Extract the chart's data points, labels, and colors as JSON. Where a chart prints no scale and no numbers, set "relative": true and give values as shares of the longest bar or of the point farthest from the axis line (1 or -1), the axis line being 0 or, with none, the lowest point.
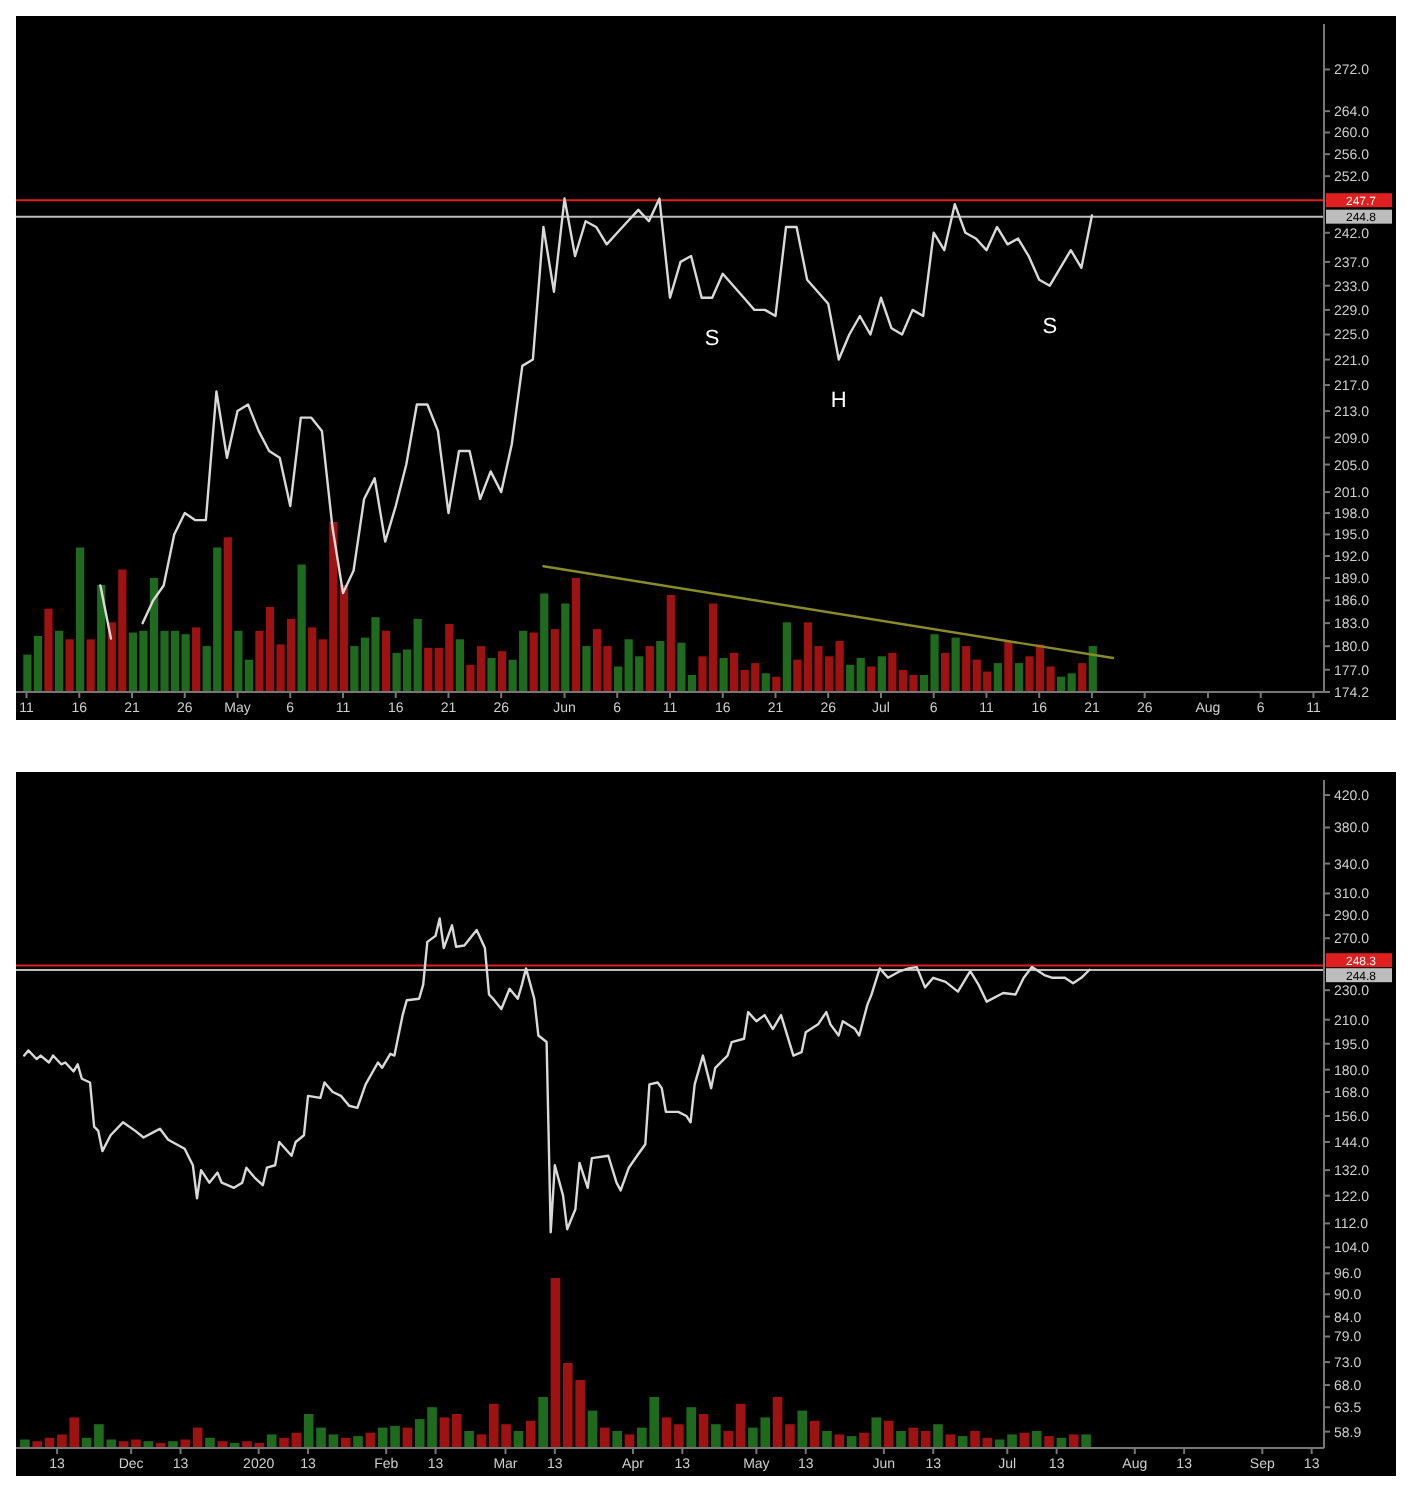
{
  "chart_data": [
    {
      "type": "line",
      "color": "#d9d9d9",
      "log": "y",
      "x": [
        "2020-04-18",
        "2020-04-19",
        "2020-04-20",
        "2020-04-21",
        "2020-04-22",
        "2020-04-23",
        "2020-04-24",
        "2020-04-25",
        "2020-04-26",
        "2020-04-27",
        "2020-04-28",
        "2020-04-29",
        "2020-04-30",
        "2020-05-01",
        "2020-05-02",
        "2020-05-03",
        "2020-05-04",
        "2020-05-05",
        "2020-05-06",
        "2020-05-07",
        "2020-05-08",
        "2020-05-09",
        "2020-05-10",
        "2020-05-11",
        "2020-05-12",
        "2020-05-13",
        "2020-05-14",
        "2020-05-15",
        "2020-05-16",
        "2020-05-17",
        "2020-05-18",
        "2020-05-19",
        "2020-05-20",
        "2020-05-21",
        "2020-05-22",
        "2020-05-23",
        "2020-05-24",
        "2020-05-25",
        "2020-05-26",
        "2020-05-27",
        "2020-05-28",
        "2020-05-29",
        "2020-05-30",
        "2020-05-31",
        "2020-06-01",
        "2020-06-02",
        "2020-06-03",
        "2020-06-04",
        "2020-06-05",
        "2020-06-06",
        "2020-06-07",
        "2020-06-08",
        "2020-06-09",
        "2020-06-10",
        "2020-06-11",
        "2020-06-12",
        "2020-06-13",
        "2020-06-14",
        "2020-06-15",
        "2020-06-16",
        "2020-06-17",
        "2020-06-18",
        "2020-06-19",
        "2020-06-20",
        "2020-06-21",
        "2020-06-22",
        "2020-06-23",
        "2020-06-24",
        "2020-06-25",
        "2020-06-26",
        "2020-06-27",
        "2020-06-28",
        "2020-06-29",
        "2020-06-30",
        "2020-07-01",
        "2020-07-02",
        "2020-07-03",
        "2020-07-04",
        "2020-07-05",
        "2020-07-06",
        "2020-07-07",
        "2020-07-08",
        "2020-07-09",
        "2020-07-10",
        "2020-07-11",
        "2020-07-12",
        "2020-07-13",
        "2020-07-14",
        "2020-07-15",
        "2020-07-16",
        "2020-07-17",
        "2020-07-18",
        "2020-07-19",
        "2020-07-20",
        "2020-07-21"
      ],
      "values": [
        188,
        181,
        null,
        null,
        183,
        186,
        188,
        195,
        198,
        197,
        197,
        216,
        206,
        213,
        214,
        210,
        207,
        206,
        199,
        212,
        212,
        210,
        196,
        187,
        190,
        200,
        203,
        194,
        199,
        205,
        214,
        214,
        210,
        198,
        207,
        207,
        200,
        204,
        201,
        208,
        220,
        221,
        243,
        232,
        248,
        238,
        244,
        243,
        240,
        242,
        244,
        246,
        244,
        248,
        231,
        237,
        238,
        231,
        231,
        235,
        233,
        231,
        229,
        229,
        228,
        243,
        243,
        234,
        232,
        230,
        221,
        225,
        228,
        225,
        231,
        226,
        225,
        229,
        228,
        242,
        239,
        247,
        242,
        241,
        239,
        243,
        240,
        241,
        238,
        234,
        233,
        236,
        239,
        236,
        245
      ],
      "xlim": [
        "2020-04-10",
        "2020-08-12"
      ],
      "xticks": [
        {
          "value": "2020-04-11",
          "label": "11"
        },
        {
          "value": "2020-04-16",
          "label": "16"
        },
        {
          "value": "2020-04-21",
          "label": "21"
        },
        {
          "value": "2020-04-26",
          "label": "26"
        },
        {
          "value": "2020-05-01",
          "label": "May"
        },
        {
          "value": "2020-05-06",
          "label": "6"
        },
        {
          "value": "2020-05-11",
          "label": "11"
        },
        {
          "value": "2020-05-16",
          "label": "16"
        },
        {
          "value": "2020-05-21",
          "label": "21"
        },
        {
          "value": "2020-05-26",
          "label": "26"
        },
        {
          "value": "2020-06-01",
          "label": "Jun"
        },
        {
          "value": "2020-06-06",
          "label": "6"
        },
        {
          "value": "2020-06-11",
          "label": "11"
        },
        {
          "value": "2020-06-16",
          "label": "16"
        },
        {
          "value": "2020-06-21",
          "label": "21"
        },
        {
          "value": "2020-06-26",
          "label": "26"
        },
        {
          "value": "2020-07-01",
          "label": "Jul"
        },
        {
          "value": "2020-07-06",
          "label": "6"
        },
        {
          "value": "2020-07-11",
          "label": "11"
        },
        {
          "value": "2020-07-16",
          "label": "16"
        },
        {
          "value": "2020-07-21",
          "label": "21"
        },
        {
          "value": "2020-07-26",
          "label": "26"
        },
        {
          "value": "2020-08-01",
          "label": "Aug"
        },
        {
          "value": "2020-08-06",
          "label": "6"
        },
        {
          "value": "2020-08-11",
          "label": "11"
        }
      ],
      "ylim": [
        174.2,
        281
      ],
      "yticks": [
        174.2,
        {
          "value": 177,
          "label": "177.0"
        },
        {
          "value": 180,
          "label": "180.0"
        },
        {
          "value": 183,
          "label": "183.0"
        },
        {
          "value": 186,
          "label": "186.0"
        },
        {
          "value": 189,
          "label": "189.0"
        },
        {
          "value": 192,
          "label": "192.0"
        },
        {
          "value": 195,
          "label": "195.0"
        },
        {
          "value": 198,
          "label": "198.0"
        },
        {
          "value": 201,
          "label": "201.0"
        },
        {
          "value": 205,
          "label": "205.0"
        },
        {
          "value": 209,
          "label": "209.0"
        },
        {
          "value": 213,
          "label": "213.0"
        },
        {
          "value": 217,
          "label": "217.0"
        },
        {
          "value": 221,
          "label": "221.0"
        },
        {
          "value": 225,
          "label": "225.0"
        },
        {
          "value": 229,
          "label": "229.0"
        },
        {
          "value": 233,
          "label": "233.0"
        },
        {
          "value": 237,
          "label": "237.0"
        },
        {
          "value": 242,
          "label": "242.0"
        },
        {
          "value": 252,
          "label": "252.0"
        },
        {
          "value": 256,
          "label": "256.0"
        },
        {
          "value": 260,
          "label": "260.0"
        },
        {
          "value": 264,
          "label": "264.0"
        },
        {
          "value": 272,
          "label": "272.0"
        }
      ],
      "ref_lines": [
        {
          "axis": "y",
          "value": 247.7,
          "label": "247.7",
          "color": "#e02020"
        },
        {
          "axis": "y",
          "value": 244.8,
          "label": "244.8",
          "color": "#bdbdbd"
        }
      ],
      "annotations": [
        {
          "text": "S",
          "x": "2020-06-15",
          "y": 231
        },
        {
          "text": "H",
          "x": "2020-06-27",
          "y": 221
        },
        {
          "text": "S",
          "x": "2020-07-17",
          "y": 233
        }
      ]
    },
    {
      "type": "bar",
      "relative": true,
      "tick_labels": false,
      "xlim": [
        "2020-04-10",
        "2020-08-12"
      ],
      "xticks": [
        {
          "value": "2020-04-11",
          "label": null
        },
        {
          "value": "2020-04-16",
          "label": null
        },
        {
          "value": "2020-04-21",
          "label": null
        },
        {
          "value": "2020-04-26",
          "label": null
        },
        {
          "value": "2020-05-01",
          "label": null
        },
        {
          "value": "2020-05-06",
          "label": null
        },
        {
          "value": "2020-05-11",
          "label": null
        },
        {
          "value": "2020-05-16",
          "label": null
        },
        {
          "value": "2020-05-21",
          "label": null
        },
        {
          "value": "2020-05-26",
          "label": null
        },
        {
          "value": "2020-06-01",
          "label": null
        },
        {
          "value": "2020-06-06",
          "label": null
        },
        {
          "value": "2020-06-11",
          "label": null
        },
        {
          "value": "2020-06-16",
          "label": null
        },
        {
          "value": "2020-06-21",
          "label": null
        },
        {
          "value": "2020-06-26",
          "label": null
        },
        {
          "value": "2020-07-01",
          "label": null
        },
        {
          "value": "2020-07-06",
          "label": null
        },
        {
          "value": "2020-07-11",
          "label": null
        },
        {
          "value": "2020-07-16",
          "label": null
        },
        {
          "value": "2020-07-21",
          "label": null
        },
        {
          "value": "2020-07-26",
          "label": null
        },
        {
          "value": "2020-08-01",
          "label": null
        },
        {
          "value": "2020-08-06",
          "label": null
        },
        {
          "value": "2020-08-11",
          "label": null
        }
      ],
      "series": [
        {
          "type": "bar",
          "x": [
            "2020-04-11",
            "2020-04-12",
            "2020-04-13",
            "2020-04-14",
            "2020-04-15",
            "2020-04-16",
            "2020-04-17",
            "2020-04-18",
            "2020-04-19",
            "2020-04-20",
            "2020-04-21",
            "2020-04-22",
            "2020-04-23",
            "2020-04-24",
            "2020-04-25",
            "2020-04-26",
            "2020-04-27",
            "2020-04-28",
            "2020-04-29",
            "2020-04-30",
            "2020-05-01",
            "2020-05-02",
            "2020-05-03",
            "2020-05-04",
            "2020-05-05",
            "2020-05-06",
            "2020-05-07",
            "2020-05-08",
            "2020-05-09",
            "2020-05-10",
            "2020-05-11",
            "2020-05-12",
            "2020-05-13",
            "2020-05-14",
            "2020-05-15",
            "2020-05-16",
            "2020-05-17",
            "2020-05-18",
            "2020-05-19",
            "2020-05-20",
            "2020-05-21",
            "2020-05-22",
            "2020-05-23",
            "2020-05-24",
            "2020-05-25",
            "2020-05-26",
            "2020-05-27",
            "2020-05-28",
            "2020-05-29",
            "2020-05-30",
            "2020-05-31",
            "2020-06-01",
            "2020-06-02",
            "2020-06-03",
            "2020-06-04",
            "2020-06-05",
            "2020-06-06",
            "2020-06-07",
            "2020-06-08",
            "2020-06-09",
            "2020-06-10",
            "2020-06-11",
            "2020-06-12",
            "2020-06-13",
            "2020-06-14",
            "2020-06-15",
            "2020-06-16",
            "2020-06-17",
            "2020-06-18",
            "2020-06-19",
            "2020-06-20",
            "2020-06-21",
            "2020-06-22",
            "2020-06-23",
            "2020-06-24",
            "2020-06-25",
            "2020-06-26",
            "2020-06-27",
            "2020-06-28",
            "2020-06-29",
            "2020-06-30",
            "2020-07-01",
            "2020-07-02",
            "2020-07-03",
            "2020-07-04",
            "2020-07-05",
            "2020-07-06",
            "2020-07-07",
            "2020-07-08",
            "2020-07-09",
            "2020-07-10",
            "2020-07-11",
            "2020-07-12",
            "2020-07-13",
            "2020-07-14",
            "2020-07-15",
            "2020-07-16",
            "2020-07-17",
            "2020-07-18",
            "2020-07-19",
            "2020-07-20",
            "2020-07-21"
          ],
          "values": [
            0.22,
            0.33,
            0.49,
            0.36,
            0.31,
            0.85,
            0.31,
            0.63,
            0.41,
            0.72,
            0.35,
            0.36,
            0.67,
            0.36,
            0.36,
            0.34,
            0.38,
            0.27,
            0.85,
            0.91,
            0.36,
            0.19,
            0.36,
            0.5,
            0.28,
            0.43,
            0.75,
            0.38,
            0.31,
            1,
            0.63,
            0.27,
            0.32,
            0.44,
            0.36,
            0.23,
            0.25,
            0.43,
            0.26,
            0.26,
            0.4,
            0.31,
            0.16,
            0.27,
            0.2,
            0.24,
            0.19,
            0.36,
            0.35,
            0.58,
            0.37,
            0.52,
            0.67,
            0.27,
            0.37,
            0.27,
            0.15,
            0.31,
            0.21,
            0.27,
            0.3,
            0.57,
            0.29,
            0.1,
            0.21,
            0.52,
            0.2,
            0.23,
            0.13,
            0.17,
            0.11,
            0.09,
            0.41,
            0.19,
            0.41,
            0.27,
            0.21,
            0.3,
            0.16,
            0.2,
            0.15,
            0.21,
            0.23,
            0.13,
            0.1,
            0.1,
            0.34,
            0.23,
            0.32,
            0.27,
            0.19,
            0.12,
            0.17,
            0.3,
            0.17,
            0.21,
            0.28,
            0.15,
            0.09,
            0.11,
            0.17,
            0.27
          ],
          "colors": [
            "#1e6b1e",
            "#1e6b1e",
            "#9e1212",
            "#1e6b1e",
            "#9e1212",
            "#1e6b1e",
            "#9e1212",
            "#1e6b1e",
            "#9e1212",
            "#9e1212",
            "#1e6b1e",
            "#1e6b1e",
            "#1e6b1e",
            "#1e6b1e",
            "#1e6b1e",
            "#1e6b1e",
            "#9e1212",
            "#1e6b1e",
            "#1e6b1e",
            "#9e1212",
            "#1e6b1e",
            "#1e6b1e",
            "#9e1212",
            "#9e1212",
            "#9e1212",
            "#9e1212",
            "#1e6b1e",
            "#9e1212",
            "#9e1212",
            "#9e1212",
            "#9e1212",
            "#1e6b1e",
            "#1e6b1e",
            "#1e6b1e",
            "#9e1212",
            "#1e6b1e",
            "#1e6b1e",
            "#1e6b1e",
            "#9e1212",
            "#9e1212",
            "#9e1212",
            "#1e6b1e",
            "#9e1212",
            "#9e1212",
            "#1e6b1e",
            "#9e1212",
            "#1e6b1e",
            "#1e6b1e",
            "#9e1212",
            "#1e6b1e",
            "#9e1212",
            "#1e6b1e",
            "#9e1212",
            "#1e6b1e",
            "#9e1212",
            "#9e1212",
            "#1e6b1e",
            "#1e6b1e",
            "#1e6b1e",
            "#9e1212",
            "#1e6b1e",
            "#9e1212",
            "#1e6b1e",
            "#1e6b1e",
            "#9e1212",
            "#9e1212",
            "#1e6b1e",
            "#9e1212",
            "#9e1212",
            "#9e1212",
            "#1e6b1e",
            "#9e1212",
            "#1e6b1e",
            "#9e1212",
            "#9e1212",
            "#9e1212",
            "#9e1212",
            "#9e1212",
            "#1e6b1e",
            "#1e6b1e",
            "#9e1212",
            "#1e6b1e",
            "#9e1212",
            "#9e1212",
            "#9e1212",
            "#1e6b1e",
            "#1e6b1e",
            "#9e1212",
            "#1e6b1e",
            "#9e1212",
            "#9e1212",
            "#9e1212",
            "#1e6b1e",
            "#9e1212",
            "#1e6b1e",
            "#9e1212",
            "#9e1212",
            "#9e1212",
            "#1e6b1e",
            "#1e6b1e",
            "#9e1212",
            "#1e6b1e"
          ]
        },
        {
          "type": "line",
          "x": [
            "2020-05-30",
            "2020-07-23"
          ],
          "values": [
            0.74,
            0.2
          ],
          "color": "#8a8a2a"
        }
      ]
    },
    {
      "type": "line",
      "color": "#d9d9d9",
      "log": "y",
      "x": [
        "2019-11-05",
        "2019-11-06",
        "2019-11-08",
        "2019-11-09",
        "2019-11-11",
        "2019-11-12",
        "2019-11-14",
        "2019-11-15",
        "2019-11-17",
        "2019-11-18",
        "2019-11-19",
        "2019-11-21",
        "2019-11-22",
        "2019-11-23",
        "2019-11-24",
        "2019-11-26",
        "2019-11-29",
        "2019-12-02",
        "2019-12-04",
        "2019-12-06",
        "2019-12-08",
        "2019-12-10",
        "2019-12-12",
        "2019-12-14",
        "2019-12-16",
        "2019-12-17",
        "2019-12-18",
        "2019-12-20",
        "2019-12-22",
        "2019-12-23",
        "2019-12-26",
        "2019-12-28",
        "2019-12-29",
        "2019-12-31",
        "2020-01-02",
        "2020-01-03",
        "2020-01-05",
        "2020-01-06",
        "2020-01-09",
        "2020-01-10",
        "2020-01-12",
        "2020-01-13",
        "2020-01-16",
        "2020-01-17",
        "2020-01-19",
        "2020-01-21",
        "2020-01-23",
        "2020-01-25",
        "2020-01-27",
        "2020-01-30",
        "2020-01-31",
        "2020-02-02",
        "2020-02-03",
        "2020-02-05",
        "2020-02-06",
        "2020-02-09",
        "2020-02-10",
        "2020-02-11",
        "2020-02-13",
        "2020-02-14",
        "2020-02-15",
        "2020-02-17",
        "2020-02-18",
        "2020-02-20",
        "2020-02-23",
        "2020-02-25",
        "2020-02-26",
        "2020-02-27",
        "2020-02-29",
        "2020-03-02",
        "2020-03-04",
        "2020-03-05",
        "2020-03-06",
        "2020-03-08",
        "2020-03-09",
        "2020-03-11",
        "2020-03-12",
        "2020-03-13",
        "2020-03-15",
        "2020-03-16",
        "2020-03-18",
        "2020-03-19",
        "2020-03-21",
        "2020-03-22",
        "2020-03-26",
        "2020-03-28",
        "2020-03-29",
        "2020-03-31",
        "2020-04-02",
        "2020-04-04",
        "2020-04-05",
        "2020-04-07",
        "2020-04-08",
        "2020-04-09",
        "2020-04-12",
        "2020-04-14",
        "2020-04-15",
        "2020-04-16",
        "2020-04-18",
        "2020-04-20",
        "2020-04-21",
        "2020-04-24",
        "2020-04-25",
        "2020-04-28",
        "2020-04-29",
        "2020-05-01",
        "2020-05-03",
        "2020-05-05",
        "2020-05-07",
        "2020-05-10",
        "2020-05-12",
        "2020-05-13",
        "2020-05-16",
        "2020-05-18",
        "2020-05-19",
        "2020-05-21",
        "2020-05-22",
        "2020-05-25",
        "2020-05-26",
        "2020-05-28",
        "2020-05-29",
        "2020-05-31",
        "2020-06-02",
        "2020-06-05",
        "2020-06-07",
        "2020-06-09",
        "2020-06-11",
        "2020-06-13",
        "2020-06-16",
        "2020-06-19",
        "2020-06-22",
        "2020-06-24",
        "2020-06-26",
        "2020-06-30",
        "2020-07-03",
        "2020-07-05",
        "2020-07-07",
        "2020-07-10",
        "2020-07-12",
        "2020-07-15",
        "2020-07-17",
        "2020-07-19",
        "2020-07-21"
      ],
      "values": [
        188,
        191,
        186,
        188,
        184,
        188,
        183,
        184,
        179,
        183,
        175,
        173,
        151,
        149,
        140,
        147,
        153,
        149,
        146,
        148,
        150,
        145,
        143,
        141,
        134,
        121,
        132,
        127,
        131,
        127,
        125,
        127,
        133,
        129,
        126,
        133,
        134,
        144,
        138,
        144,
        147,
        166,
        165,
        173,
        168,
        166,
        161,
        160,
        172,
        184,
        181,
        189,
        188,
        213,
        223,
        224,
        234,
        267,
        272,
        287,
        262,
        281,
        263,
        264,
        277,
        262,
        227,
        224,
        217,
        231,
        224,
        234,
        246,
        224,
        200,
        196,
        109,
        134,
        122,
        110,
        117,
        135,
        125,
        137,
        138,
        127,
        124,
        133,
        138,
        143,
        172,
        173,
        170,
        158,
        158,
        156,
        153,
        172,
        188,
        170,
        181,
        188,
        196,
        198,
        215,
        209,
        213,
        204,
        213,
        188,
        190,
        202,
        207,
        215,
        207,
        200,
        209,
        204,
        200,
        220,
        227,
        246,
        239,
        244,
        246,
        247,
        232,
        239,
        236,
        229,
        244,
        234,
        222,
        228,
        227,
        239,
        247,
        241,
        239,
        239,
        235,
        239,
        245
      ],
      "xlim": [
        "2019-11-03",
        "2020-09-16"
      ],
      "xticks": [
        {
          "value": "2019-11-13",
          "label": "13"
        },
        {
          "value": "2019-12-01",
          "label": "Dec"
        },
        {
          "value": "2019-12-13",
          "label": "13"
        },
        {
          "value": "2020-01-01",
          "label": "2020"
        },
        {
          "value": "2020-01-13",
          "label": "13"
        },
        {
          "value": "2020-02-01",
          "label": "Feb"
        },
        {
          "value": "2020-02-13",
          "label": "13"
        },
        {
          "value": "2020-03-01",
          "label": "Mar"
        },
        {
          "value": "2020-03-13",
          "label": "13"
        },
        {
          "value": "2020-04-01",
          "label": "Apr"
        },
        {
          "value": "2020-04-13",
          "label": "13"
        },
        {
          "value": "2020-05-01",
          "label": "May"
        },
        {
          "value": "2020-05-13",
          "label": "13"
        },
        {
          "value": "2020-06-01",
          "label": "Jun"
        },
        {
          "value": "2020-06-13",
          "label": "13"
        },
        {
          "value": "2020-07-01",
          "label": "Jul"
        },
        {
          "value": "2020-07-13",
          "label": "13"
        },
        {
          "value": "2020-08-01",
          "label": "Aug"
        },
        {
          "value": "2020-08-13",
          "label": "13"
        },
        {
          "value": "2020-09-01",
          "label": "Sep"
        },
        {
          "value": "2020-09-13",
          "label": "13"
        }
      ],
      "ylim": [
        56,
        440
      ],
      "yticks": [
        58.9,
        63.5,
        {
          "value": 68,
          "label": "68.0"
        },
        {
          "value": 73,
          "label": "73.0"
        },
        {
          "value": 79,
          "label": "79.0"
        },
        {
          "value": 84,
          "label": "84.0"
        },
        {
          "value": 90,
          "label": "90.0"
        },
        {
          "value": 96,
          "label": "96.0"
        },
        {
          "value": 104,
          "label": "104.0"
        },
        {
          "value": 112,
          "label": "112.0"
        },
        {
          "value": 122,
          "label": "122.0"
        },
        {
          "value": 132,
          "label": "132.0"
        },
        {
          "value": 144,
          "label": "144.0"
        },
        {
          "value": 156,
          "label": "156.0"
        },
        {
          "value": 168,
          "label": "168.0"
        },
        {
          "value": 180,
          "label": "180.0"
        },
        {
          "value": 195,
          "label": "195.0"
        },
        {
          "value": 210,
          "label": "210.0"
        },
        {
          "value": 230,
          "label": "230.0"
        },
        {
          "value": 270,
          "label": "270.0"
        },
        {
          "value": 290,
          "label": "290.0"
        },
        {
          "value": 310,
          "label": "310.0"
        },
        {
          "value": 340,
          "label": "340.0"
        },
        {
          "value": 380,
          "label": "380.0"
        },
        {
          "value": 420,
          "label": "420.0"
        }
      ],
      "ref_lines": [
        {
          "axis": "y",
          "value": 248.3,
          "label": "248.3",
          "color": "#e02020"
        },
        {
          "axis": "y",
          "value": 244.8,
          "label": "244.8",
          "color": "#bdbdbd"
        }
      ]
    },
    {
      "type": "bar",
      "relative": true,
      "tick_labels": false,
      "xlim": [
        "2019-11-03",
        "2020-09-16"
      ],
      "xticks": [
        {
          "value": "2019-11-13",
          "label": null
        },
        {
          "value": "2019-12-01",
          "label": null
        },
        {
          "value": "2019-12-13",
          "label": null
        },
        {
          "value": "2020-01-01",
          "label": null
        },
        {
          "value": "2020-01-13",
          "label": null
        },
        {
          "value": "2020-02-01",
          "label": null
        },
        {
          "value": "2020-02-13",
          "label": null
        },
        {
          "value": "2020-03-01",
          "label": null
        },
        {
          "value": "2020-03-13",
          "label": null
        },
        {
          "value": "2020-04-01",
          "label": null
        },
        {
          "value": "2020-04-13",
          "label": null
        },
        {
          "value": "2020-05-01",
          "label": null
        },
        {
          "value": "2020-05-13",
          "label": null
        },
        {
          "value": "2020-06-01",
          "label": null
        },
        {
          "value": "2020-06-13",
          "label": null
        },
        {
          "value": "2020-07-01",
          "label": null
        },
        {
          "value": "2020-07-13",
          "label": null
        },
        {
          "value": "2020-08-01",
          "label": null
        },
        {
          "value": "2020-08-13",
          "label": null
        },
        {
          "value": "2020-09-01",
          "label": null
        },
        {
          "value": "2020-09-13",
          "label": null
        }
      ],
      "series": [
        {
          "type": "bar",
          "x": [
            "2019-11-05",
            "2019-11-08",
            "2019-11-11",
            "2019-11-14",
            "2019-11-17",
            "2019-11-20",
            "2019-11-23",
            "2019-11-26",
            "2019-11-29",
            "2019-12-02",
            "2019-12-05",
            "2019-12-08",
            "2019-12-11",
            "2019-12-14",
            "2019-12-17",
            "2019-12-20",
            "2019-12-23",
            "2019-12-26",
            "2019-12-29",
            "2020-01-01",
            "2020-01-04",
            "2020-01-07",
            "2020-01-10",
            "2020-01-13",
            "2020-01-16",
            "2020-01-19",
            "2020-01-22",
            "2020-01-25",
            "2020-01-28",
            "2020-01-31",
            "2020-02-03",
            "2020-02-06",
            "2020-02-09",
            "2020-02-12",
            "2020-02-15",
            "2020-02-18",
            "2020-02-21",
            "2020-02-24",
            "2020-02-27",
            "2020-03-01",
            "2020-03-04",
            "2020-03-07",
            "2020-03-10",
            "2020-03-13",
            "2020-03-16",
            "2020-03-19",
            "2020-03-22",
            "2020-03-25",
            "2020-03-28",
            "2020-03-31",
            "2020-04-03",
            "2020-04-06",
            "2020-04-09",
            "2020-04-12",
            "2020-04-15",
            "2020-04-18",
            "2020-04-21",
            "2020-04-24",
            "2020-04-27",
            "2020-04-30",
            "2020-05-03",
            "2020-05-06",
            "2020-05-09",
            "2020-05-12",
            "2020-05-15",
            "2020-05-18",
            "2020-05-21",
            "2020-05-24",
            "2020-05-27",
            "2020-05-30",
            "2020-06-02",
            "2020-06-05",
            "2020-06-08",
            "2020-06-11",
            "2020-06-14",
            "2020-06-17",
            "2020-06-20",
            "2020-06-23",
            "2020-06-26",
            "2020-06-29",
            "2020-07-02",
            "2020-07-05",
            "2020-07-08",
            "2020-07-11",
            "2020-07-14",
            "2020-07-17",
            "2020-07-20"
          ],
          "values": [
            0.05,
            0.04,
            0.06,
            0.08,
            0.18,
            0.06,
            0.14,
            0.05,
            0.04,
            0.05,
            0.04,
            0.03,
            0.04,
            0.05,
            0.12,
            0.06,
            0.04,
            0.03,
            0.04,
            0.03,
            0.08,
            0.06,
            0.09,
            0.2,
            0.12,
            0.08,
            0.06,
            0.07,
            0.09,
            0.12,
            0.13,
            0.12,
            0.17,
            0.24,
            0.18,
            0.2,
            0.1,
            0.08,
            0.26,
            0.14,
            0.1,
            0.16,
            0.3,
            1,
            0.5,
            0.4,
            0.22,
            0.12,
            0.1,
            0.08,
            0.12,
            0.3,
            0.18,
            0.14,
            0.24,
            0.2,
            0.14,
            0.1,
            0.26,
            0.12,
            0.18,
            0.3,
            0.14,
            0.22,
            0.16,
            0.1,
            0.08,
            0.07,
            0.09,
            0.18,
            0.16,
            0.1,
            0.12,
            0.1,
            0.14,
            0.08,
            0.07,
            0.1,
            0.06,
            0.05,
            0.08,
            0.09,
            0.1,
            0.07,
            0.06,
            0.08,
            0.08
          ],
          "colors": [
            "#1e6b1e",
            "#9e1212",
            "#9e1212",
            "#9e1212",
            "#9e1212",
            "#1e6b1e",
            "#1e6b1e",
            "#1e6b1e",
            "#9e1212",
            "#9e1212",
            "#1e6b1e",
            "#9e1212",
            "#1e6b1e",
            "#9e1212",
            "#9e1212",
            "#1e6b1e",
            "#9e1212",
            "#1e6b1e",
            "#9e1212",
            "#9e1212",
            "#1e6b1e",
            "#9e1212",
            "#9e1212",
            "#1e6b1e",
            "#1e6b1e",
            "#1e6b1e",
            "#9e1212",
            "#1e6b1e",
            "#9e1212",
            "#1e6b1e",
            "#1e6b1e",
            "#9e1212",
            "#1e6b1e",
            "#1e6b1e",
            "#9e1212",
            "#9e1212",
            "#1e6b1e",
            "#9e1212",
            "#9e1212",
            "#9e1212",
            "#1e6b1e",
            "#9e1212",
            "#1e6b1e",
            "#9e1212",
            "#9e1212",
            "#9e1212",
            "#1e6b1e",
            "#9e1212",
            "#1e6b1e",
            "#9e1212",
            "#1e6b1e",
            "#1e6b1e",
            "#9e1212",
            "#9e1212",
            "#1e6b1e",
            "#9e1212",
            "#1e6b1e",
            "#9e1212",
            "#9e1212",
            "#1e6b1e",
            "#1e6b1e",
            "#9e1212",
            "#9e1212",
            "#1e6b1e",
            "#9e1212",
            "#1e6b1e",
            "#9e1212",
            "#1e6b1e",
            "#9e1212",
            "#1e6b1e",
            "#9e1212",
            "#1e6b1e",
            "#9e1212",
            "#9e1212",
            "#1e6b1e",
            "#9e1212",
            "#1e6b1e",
            "#9e1212",
            "#9e1212",
            "#1e6b1e",
            "#1e6b1e",
            "#9e1212",
            "#1e6b1e",
            "#9e1212",
            "#1e6b1e",
            "#9e1212",
            "#1e6b1e"
          ]
        }
      ]
    }
  ]
}
